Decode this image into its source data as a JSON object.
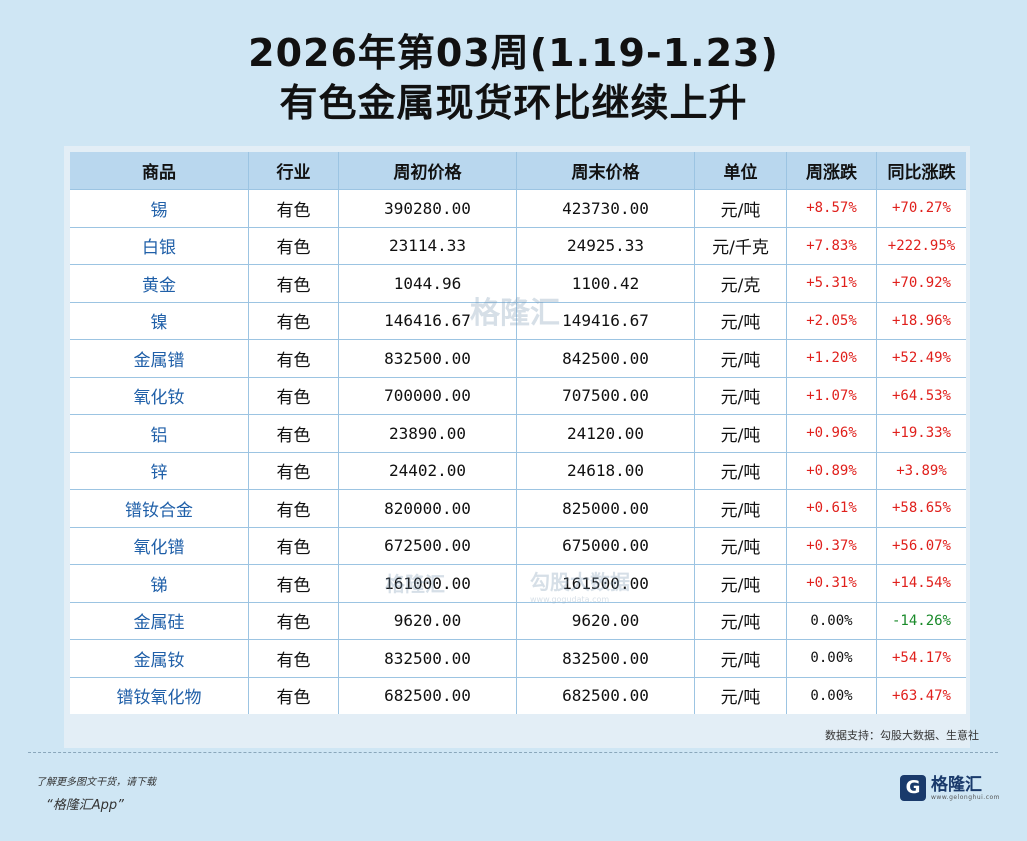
{
  "title": {
    "line1": "2026年第03周(1.19-1.23)",
    "line2": "有色金属现货环比继续上升"
  },
  "table": {
    "headers": [
      "商品",
      "行业",
      "周初价格",
      "周末价格",
      "单位",
      "周涨跌",
      "同比涨跌"
    ],
    "rows": [
      {
        "name": "锡",
        "industry": "有色",
        "start": "390280.00",
        "end": "423730.00",
        "unit": "元/吨",
        "week": "+8.57%",
        "yoy": "+70.27%"
      },
      {
        "name": "白银",
        "industry": "有色",
        "start": "23114.33",
        "end": "24925.33",
        "unit": "元/千克",
        "week": "+7.83%",
        "yoy": "+222.95%"
      },
      {
        "name": "黄金",
        "industry": "有色",
        "start": "1044.96",
        "end": "1100.42",
        "unit": "元/克",
        "week": "+5.31%",
        "yoy": "+70.92%"
      },
      {
        "name": "镍",
        "industry": "有色",
        "start": "146416.67",
        "end": "149416.67",
        "unit": "元/吨",
        "week": "+2.05%",
        "yoy": "+18.96%"
      },
      {
        "name": "金属镨",
        "industry": "有色",
        "start": "832500.00",
        "end": "842500.00",
        "unit": "元/吨",
        "week": "+1.20%",
        "yoy": "+52.49%"
      },
      {
        "name": "氧化钕",
        "industry": "有色",
        "start": "700000.00",
        "end": "707500.00",
        "unit": "元/吨",
        "week": "+1.07%",
        "yoy": "+64.53%"
      },
      {
        "name": "铝",
        "industry": "有色",
        "start": "23890.00",
        "end": "24120.00",
        "unit": "元/吨",
        "week": "+0.96%",
        "yoy": "+19.33%"
      },
      {
        "name": "锌",
        "industry": "有色",
        "start": "24402.00",
        "end": "24618.00",
        "unit": "元/吨",
        "week": "+0.89%",
        "yoy": "+3.89%"
      },
      {
        "name": "镨钕合金",
        "industry": "有色",
        "start": "820000.00",
        "end": "825000.00",
        "unit": "元/吨",
        "week": "+0.61%",
        "yoy": "+58.65%"
      },
      {
        "name": "氧化镨",
        "industry": "有色",
        "start": "672500.00",
        "end": "675000.00",
        "unit": "元/吨",
        "week": "+0.37%",
        "yoy": "+56.07%"
      },
      {
        "name": "锑",
        "industry": "有色",
        "start": "161000.00",
        "end": "161500.00",
        "unit": "元/吨",
        "week": "+0.31%",
        "yoy": "+14.54%"
      },
      {
        "name": "金属硅",
        "industry": "有色",
        "start": "9620.00",
        "end": "9620.00",
        "unit": "元/吨",
        "week": "0.00%",
        "yoy": "-14.26%"
      },
      {
        "name": "金属钕",
        "industry": "有色",
        "start": "832500.00",
        "end": "832500.00",
        "unit": "元/吨",
        "week": "0.00%",
        "yoy": "+54.17%"
      },
      {
        "name": "镨钕氧化物",
        "industry": "有色",
        "start": "682500.00",
        "end": "682500.00",
        "unit": "元/吨",
        "week": "0.00%",
        "yoy": "+63.47%"
      }
    ]
  },
  "footer": {
    "source": "数据支持：勾股大数据、生意社",
    "promo": "了解更多图文干货，请下载",
    "app": "“格隆汇App”",
    "logo_name": "格隆汇",
    "logo_url": "www.gelonghui.com"
  },
  "watermarks": {
    "glh": "格隆汇",
    "gogu": "勾股大数据",
    "gogu_url": "www.gogudata.com"
  },
  "colors": {
    "background": "#cfe6f4",
    "header_bg": "#b9d7ee",
    "up": "#e0201c",
    "down": "#1a8a2a",
    "name": "#1f5fa8"
  }
}
